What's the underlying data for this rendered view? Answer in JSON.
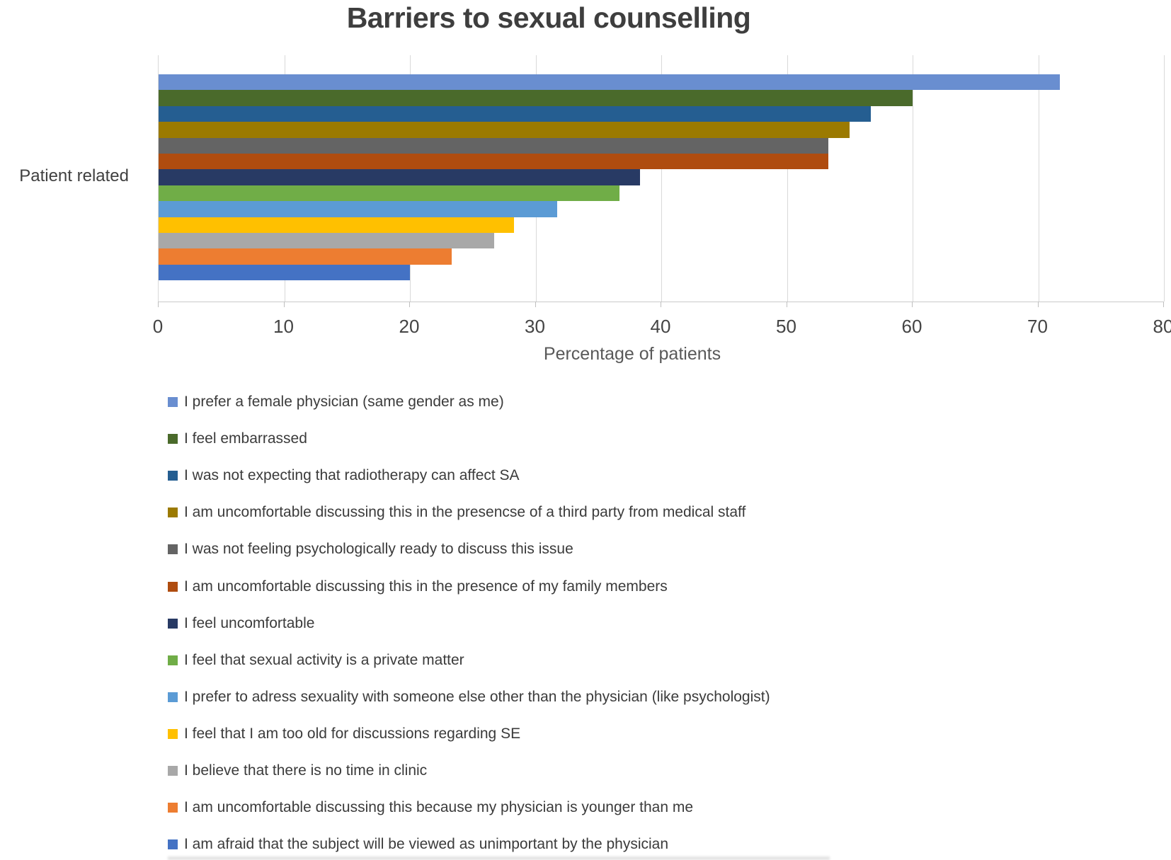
{
  "chart": {
    "title": "Barriers to sexual counselling",
    "category_label": "Patient related",
    "x_axis_title": "Percentage of patients"
  },
  "chart_data": {
    "type": "bar",
    "orientation": "horizontal",
    "title": "Barriers to sexual counselling",
    "xlabel": "Percentage of patients",
    "categories": [
      "Patient related"
    ],
    "xlim": [
      0,
      80
    ],
    "xticks": [
      0,
      10,
      20,
      30,
      40,
      50,
      60,
      70,
      80
    ],
    "grid": "vertical-only",
    "gridline_color": "#d9d9d9",
    "legend_position": "bottom-left",
    "series": [
      {
        "name": "I prefer a female physician (same gender as me)",
        "values": [
          71.7
        ],
        "color": "#698ED0"
      },
      {
        "name": "I feel embarrassed",
        "values": [
          60
        ],
        "color": "#4A6A2B"
      },
      {
        "name": "I was not expecting that radiotherapy can affect SA",
        "values": [
          56.7
        ],
        "color": "#255E91"
      },
      {
        "name": "I am uncomfortable discussing this in the presencse of a third party from medical staff",
        "values": [
          55
        ],
        "color": "#9B7A01"
      },
      {
        "name": "I was not feeling psychologically ready to discuss this issue",
        "values": [
          53.3
        ],
        "color": "#646464"
      },
      {
        "name": "I am uncomfortable discussing this in the presence of my family members",
        "values": [
          53.3
        ],
        "color": "#AF4C0F"
      },
      {
        "name": "I feel uncomfortable",
        "values": [
          38.3
        ],
        "color": "#283A64"
      },
      {
        "name": "I feel that sexual activity is a private matter",
        "values": [
          36.7
        ],
        "color": "#70AD47"
      },
      {
        "name": "I prefer to adress sexuality with someone else other than the physician (like psychologist)",
        "values": [
          31.7
        ],
        "color": "#5B9BD5"
      },
      {
        "name": "I feel that I am too old for discussions regarding SE",
        "values": [
          28.3
        ],
        "color": "#FFC000"
      },
      {
        "name": "I believe that there is no time in clinic",
        "values": [
          26.7
        ],
        "color": "#A8A8A8"
      },
      {
        "name": "I am uncomfortable discussing this because my physician is younger than me",
        "values": [
          23.3
        ],
        "color": "#ED7D31"
      },
      {
        "name": "I am afraid that the subject will be viewed as unimportant by the physician",
        "values": [
          20
        ],
        "color": "#4472C4"
      }
    ]
  }
}
